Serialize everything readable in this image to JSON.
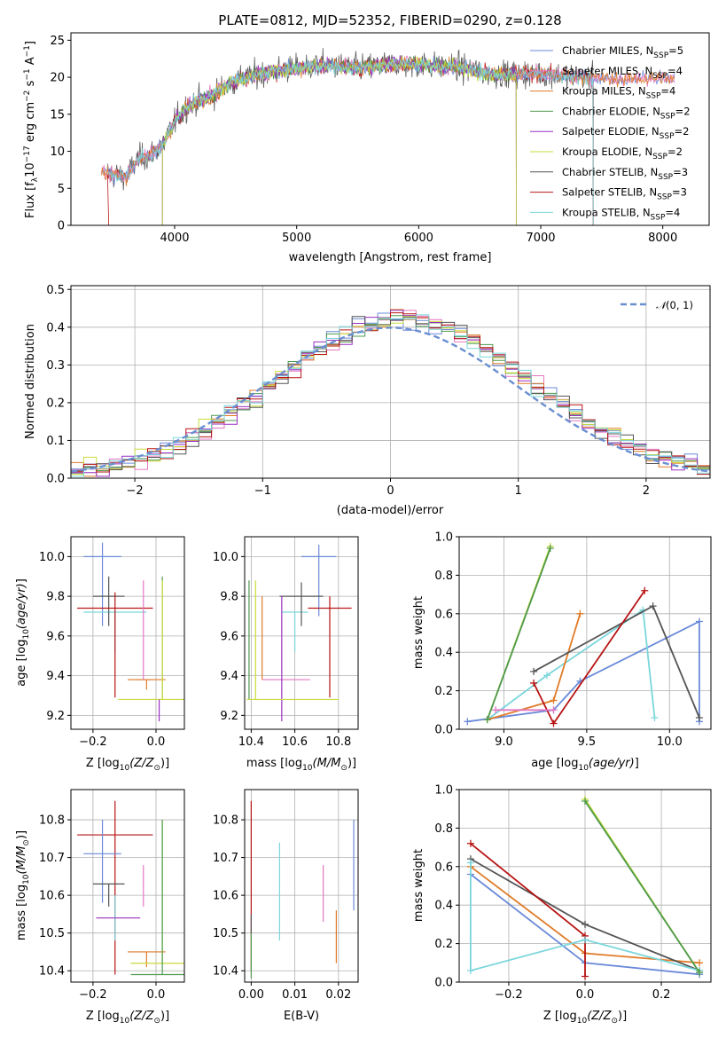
{
  "colors": {
    "chabrier_miles": "#6a89d8",
    "salpeter_miles": "#e377c2",
    "kroupa_miles": "#e07b28",
    "chabrier_elodie": "#4f9a4f",
    "salpeter_elodie": "#9a2fc0",
    "kroupa_elodie": "#c9dc3a",
    "chabrier_stelib": "#555555",
    "salpeter_stelib": "#b81414",
    "kroupa_stelib": "#7ad6dc",
    "normal": "#6a8fd0"
  },
  "chart_data": [
    {
      "id": "spectrum",
      "type": "line",
      "title": "PLATE=0812, MJD=52352, FIBERID=0290, z=0.128",
      "xlabel": "wavelength [Angstrom, rest frame]",
      "ylabel": "Flux [f_λ10^-17 erg cm^-2 s^-1 A^-1]",
      "xlim": [
        3150,
        8380
      ],
      "ylim": [
        0,
        26
      ],
      "xticks": [
        4000,
        5000,
        6000,
        7000,
        8000
      ],
      "yticks": [
        0,
        5,
        10,
        15,
        20,
        25
      ],
      "grid": false,
      "legend_position": "right",
      "legend": [
        "Chabrier MILES, N_SSP=5",
        "Salpeter MILES, N_SSP=4",
        "Kroupa MILES, N_SSP=4",
        "Chabrier ELODIE, N_SSP=2",
        "Salpeter ELODIE, N_SSP=2",
        "Kroupa ELODIE, N_SSP=2",
        "Chabrier STELIB, N_SSP=3",
        "Salpeter STELIB, N_SSP=3",
        "Kroupa STELIB, N_SSP=4"
      ],
      "continuum": {
        "x": [
          3400,
          3600,
          3700,
          3800,
          3900,
          4000,
          4100,
          4200,
          4300,
          4500,
          4800,
          5000,
          5200,
          5500,
          5800,
          6000,
          6300,
          6600,
          6800,
          7000,
          7200,
          7400,
          7600,
          7800,
          8000,
          8100
        ],
        "y": [
          7.3,
          6.5,
          9.0,
          9.5,
          10.8,
          14.0,
          16.0,
          16.8,
          17.5,
          19.6,
          20.8,
          21.2,
          21.6,
          21.3,
          21.8,
          21.7,
          21.4,
          20.4,
          20.4,
          20.5,
          20.2,
          20.0,
          19.7,
          19.8,
          20.0,
          19.5
        ]
      }
    },
    {
      "id": "residuals",
      "type": "line",
      "xlabel": "(data-model)/error",
      "ylabel": "Normed distribution",
      "xlim": [
        -2.5,
        2.5
      ],
      "ylim": [
        0,
        0.51
      ],
      "xticks": [
        -2,
        -1,
        0,
        1,
        2
      ],
      "yticks": [
        0.0,
        0.1,
        0.2,
        0.3,
        0.4,
        0.5
      ],
      "grid": true,
      "legend_position": "top-right",
      "normal_label": "N(0,1)"
    },
    {
      "id": "age_vs_Z",
      "type": "scatter",
      "xlabel": "Z [log10(Z/Z⊙)]",
      "ylabel": "age  [log10(age/yr)]",
      "xlim": [
        -0.27,
        0.09
      ],
      "ylim": [
        9.13,
        10.1
      ],
      "xticks": [
        -0.2,
        0.0
      ],
      "yticks": [
        9.2,
        9.4,
        9.6,
        9.8,
        10.0
      ],
      "grid": true,
      "points": [
        {
          "model": "chabrier_miles",
          "x": -0.17,
          "y": 10.0,
          "xerr": 0.06,
          "yerr": [
            0.35,
            0.07
          ]
        },
        {
          "model": "kroupa_stelib",
          "x": -0.13,
          "y": 9.72,
          "xerr": 0.1,
          "yerr": [
            0.2,
            0.0
          ]
        },
        {
          "model": "chabrier_stelib",
          "x": -0.15,
          "y": 9.8,
          "xerr": 0.05,
          "yerr": [
            0.15,
            0.1
          ]
        },
        {
          "model": "salpeter_stelib",
          "x": -0.13,
          "y": 9.74,
          "xerr": 0.12,
          "yerr": [
            0.45,
            0.08
          ]
        },
        {
          "model": "salpeter_miles",
          "x": -0.04,
          "y": 9.38,
          "xerr": 0.03,
          "yerr": [
            0.0,
            0.5
          ]
        },
        {
          "model": "kroupa_miles",
          "x": -0.03,
          "y": 9.38,
          "xerr": 0.06,
          "yerr": [
            0.05,
            0.0
          ]
        },
        {
          "model": "chabrier_elodie",
          "x": 0.02,
          "y": 9.28,
          "xerr": 0.0,
          "yerr": [
            0.0,
            0.62
          ]
        },
        {
          "model": "kroupa_elodie",
          "x": 0.02,
          "y": 9.28,
          "xerr": 0.14,
          "yerr": [
            0.0,
            0.6
          ]
        },
        {
          "model": "salpeter_elodie",
          "x": 0.01,
          "y": 9.28,
          "xerr": 0.0,
          "yerr": [
            0.11,
            0.0
          ]
        }
      ]
    },
    {
      "id": "age_vs_mass",
      "type": "scatter",
      "xlabel": "mass [log10(M/M⊙)]",
      "ylabel": "",
      "xlim": [
        10.37,
        10.89
      ],
      "ylim": [
        9.13,
        10.1
      ],
      "xticks": [
        10.4,
        10.6,
        10.8
      ],
      "yticks": [
        9.2,
        9.4,
        9.6,
        9.8,
        10.0
      ],
      "grid": true,
      "points": [
        {
          "model": "chabrier_miles",
          "x": 10.71,
          "y": 10.0,
          "xerr": 0.08,
          "yerr": [
            0.3,
            0.06
          ]
        },
        {
          "model": "kroupa_stelib",
          "x": 10.6,
          "y": 9.72,
          "xerr": 0.06,
          "yerr": [
            0.2,
            0.0
          ]
        },
        {
          "model": "chabrier_stelib",
          "x": 10.63,
          "y": 9.8,
          "xerr": 0.1,
          "yerr": [
            0.15,
            0.07
          ]
        },
        {
          "model": "salpeter_stelib",
          "x": 10.76,
          "y": 9.74,
          "xerr": 0.1,
          "yerr": [
            0.45,
            0.06
          ]
        },
        {
          "model": "salpeter_miles",
          "x": 10.56,
          "y": 9.38,
          "xerr": 0.11,
          "yerr": [
            0.0,
            0.0
          ]
        },
        {
          "model": "kroupa_miles",
          "x": 10.45,
          "y": 9.38,
          "xerr": 0.0,
          "yerr": [
            0.0,
            0.42
          ]
        },
        {
          "model": "chabrier_elodie",
          "x": 10.39,
          "y": 9.28,
          "xerr": 0.0,
          "yerr": [
            0.0,
            0.6
          ]
        },
        {
          "model": "kroupa_elodie",
          "x": 10.42,
          "y": 9.28,
          "xerr": 0.0,
          "yerr": [
            0.0,
            0.6
          ]
        },
        {
          "model": "salpeter_elodie",
          "x": 10.54,
          "y": 9.5,
          "xerr": 0.0,
          "yerr": [
            0.33,
            0.3
          ]
        },
        {
          "model": "kroupa_elodie",
          "x": 10.59,
          "y": 9.28,
          "xerr": 0.21,
          "yerr": [
            0.0,
            0.0
          ]
        }
      ]
    },
    {
      "id": "massweight_vs_age",
      "type": "line",
      "xlabel": "age  [log10(age/yr)]",
      "ylabel": "mass weight",
      "xlim": [
        8.73,
        10.25
      ],
      "ylim": [
        0,
        1.0
      ],
      "xticks": [
        9.0,
        9.5,
        10.0
      ],
      "yticks": [
        0.0,
        0.2,
        0.4,
        0.6,
        0.8,
        1.0
      ],
      "grid": true,
      "series": [
        {
          "model": "chabrier_miles",
          "x": [
            8.78,
            9.3,
            9.46,
            10.18,
            10.18
          ],
          "y": [
            0.04,
            0.1,
            0.25,
            0.56,
            0.04
          ]
        },
        {
          "model": "kroupa_stelib",
          "x": 8.9,
          "xs": [
            8.9,
            9.26,
            9.84,
            9.91
          ],
          "y": [
            0.05,
            0.28,
            0.62,
            0.06
          ]
        },
        {
          "model": "kroupa_miles",
          "x": [
            8.9,
            9.3,
            9.46
          ],
          "y": [
            0.05,
            0.15,
            0.6
          ]
        },
        {
          "model": "chabrier_stelib",
          "x": [
            9.18,
            9.9,
            10.18
          ],
          "y": [
            0.3,
            0.64,
            0.06
          ]
        },
        {
          "model": "salpeter_stelib",
          "x": [
            9.18,
            9.3,
            9.85
          ],
          "y": [
            0.24,
            0.03,
            0.72
          ]
        },
        {
          "model": "kroupa_elodie",
          "x": [
            8.9,
            9.28
          ],
          "y": [
            0.05,
            0.95
          ]
        },
        {
          "model": "chabrier_elodie",
          "x": [
            8.9,
            9.28
          ],
          "y": [
            0.05,
            0.94
          ]
        },
        {
          "model": "salpeter_miles",
          "x": [
            8.95,
            9.3
          ],
          "y": [
            0.1,
            0.1
          ]
        }
      ]
    },
    {
      "id": "mass_vs_Z",
      "type": "scatter",
      "xlabel": "Z [log10(Z/Z⊙)]",
      "ylabel": "mass [log10(M/M⊙)]",
      "xlim": [
        -0.27,
        0.09
      ],
      "ylim": [
        10.37,
        10.88
      ],
      "xticks": [
        -0.2,
        0.0
      ],
      "yticks": [
        10.4,
        10.5,
        10.6,
        10.7,
        10.8
      ],
      "grid": true,
      "points": [
        {
          "model": "salpeter_stelib",
          "x": -0.13,
          "y": 10.76,
          "xerr": 0.12,
          "yerr": [
            0.37,
            0.09
          ]
        },
        {
          "model": "chabrier_miles",
          "x": -0.17,
          "y": 10.71,
          "xerr": 0.06,
          "yerr": [
            0.13,
            0.09
          ]
        },
        {
          "model": "chabrier_stelib",
          "x": -0.15,
          "y": 10.63,
          "xerr": 0.05,
          "yerr": [
            0.06,
            0.0
          ]
        },
        {
          "model": "kroupa_stelib",
          "x": -0.13,
          "y": 10.6,
          "xerr": 0.0,
          "yerr": [
            0.12,
            0.0
          ]
        },
        {
          "model": "salpeter_miles",
          "x": -0.04,
          "y": 10.57,
          "xerr": 0.0,
          "yerr": [
            0.0,
            0.11
          ]
        },
        {
          "model": "salpeter_elodie",
          "x": -0.12,
          "y": 10.54,
          "xerr": 0.07,
          "yerr": [
            0.0,
            0.0
          ]
        },
        {
          "model": "kroupa_miles",
          "x": -0.03,
          "y": 10.45,
          "xerr": 0.06,
          "yerr": [
            0.04,
            0.0
          ]
        },
        {
          "model": "kroupa_elodie",
          "x": 0.02,
          "y": 10.42,
          "xerr": 0.1,
          "yerr": [
            0.0,
            0.38
          ]
        },
        {
          "model": "chabrier_elodie",
          "x": 0.02,
          "y": 10.39,
          "xerr": 0.1,
          "yerr": [
            0.0,
            0.41
          ]
        }
      ]
    },
    {
      "id": "mass_vs_ebv",
      "type": "scatter",
      "xlabel": "E(B-V)",
      "ylabel": "",
      "xlim": [
        -0.0015,
        0.0245
      ],
      "ylim": [
        10.37,
        10.88
      ],
      "xticks": [
        0.0,
        0.01,
        0.02
      ],
      "yticks": [
        10.4,
        10.5,
        10.6,
        10.7,
        10.8
      ],
      "grid": true,
      "points": [
        {
          "model": "salpeter_stelib",
          "x": 0.0,
          "y": 10.6,
          "yerr": [
            0.2,
            0.25
          ]
        },
        {
          "model": "chabrier_elodie",
          "x": 0.0,
          "y": 10.5,
          "yerr": [
            0.12,
            0.0
          ]
        },
        {
          "model": "chabrier_stelib",
          "x": 0.0,
          "y": 10.5,
          "yerr": [
            0.0,
            0.05
          ]
        },
        {
          "model": "kroupa_stelib",
          "x": 0.0065,
          "y": 10.6,
          "yerr": [
            0.12,
            0.14
          ]
        },
        {
          "model": "salpeter_miles",
          "x": 0.0165,
          "y": 10.59,
          "yerr": [
            0.06,
            0.09
          ]
        },
        {
          "model": "kroupa_miles",
          "x": 0.0195,
          "y": 10.49,
          "yerr": [
            0.07,
            0.07
          ]
        },
        {
          "model": "chabrier_miles",
          "x": 0.0235,
          "y": 10.68,
          "yerr": [
            0.12,
            0.12
          ]
        }
      ]
    },
    {
      "id": "massweight_vs_Z",
      "type": "line",
      "xlabel": "Z [log10(Z/Z⊙)]",
      "ylabel": "mass weight",
      "xlim": [
        -0.33,
        0.33
      ],
      "ylim": [
        0,
        1.0
      ],
      "xticks": [
        -0.2,
        0.0,
        0.2
      ],
      "yticks": [
        0.0,
        0.2,
        0.4,
        0.6,
        0.8,
        1.0
      ],
      "grid": true,
      "series": [
        {
          "model": "chabrier_miles",
          "x": [
            -0.3,
            0.0,
            0.3
          ],
          "y": [
            0.56,
            0.1,
            0.04
          ]
        },
        {
          "model": "kroupa_miles",
          "x": [
            -0.3,
            0.0,
            0.3
          ],
          "y": [
            0.6,
            0.15,
            0.1
          ]
        },
        {
          "model": "chabrier_stelib",
          "x": [
            -0.3,
            0.0,
            0.3
          ],
          "y": [
            0.64,
            0.3,
            0.06
          ]
        },
        {
          "model": "salpeter_stelib",
          "x": [
            -0.3,
            0.0,
            0.0
          ],
          "y": [
            0.72,
            0.24,
            0.03
          ]
        },
        {
          "model": "kroupa_stelib",
          "x": [
            -0.3,
            -0.3,
            0.0,
            0.3
          ],
          "y": [
            0.62,
            0.06,
            0.22,
            0.06
          ]
        },
        {
          "model": "kroupa_elodie",
          "x": [
            0.0,
            0.3
          ],
          "y": [
            0.95,
            0.05
          ]
        },
        {
          "model": "chabrier_elodie",
          "x": [
            0.0,
            0.3
          ],
          "y": [
            0.94,
            0.05
          ]
        }
      ]
    }
  ]
}
